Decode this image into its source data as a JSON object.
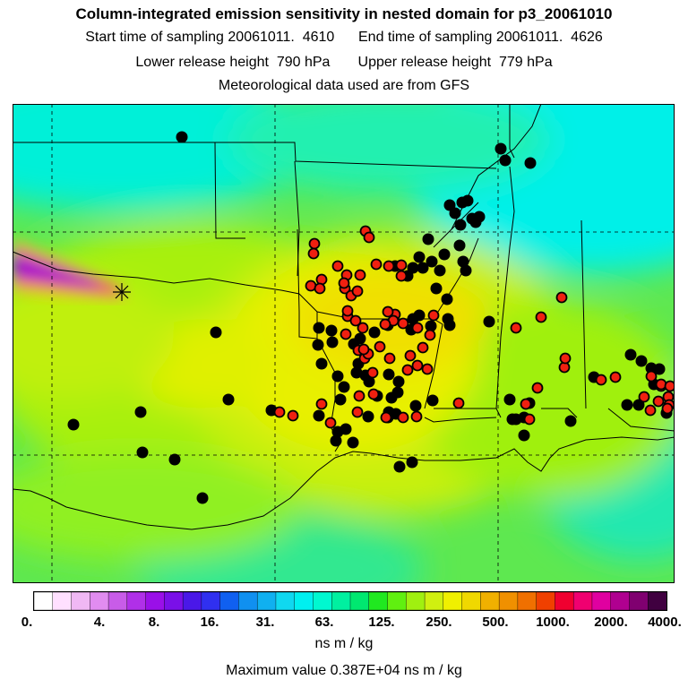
{
  "header": {
    "title": "Column-integrated emission sensitivity in nested domain for p3_20061010",
    "line1": "Start time of sampling 20061011.  4610      End time of sampling 20061011.  4626",
    "line2": "Lower release height  790 hPa       Upper release height  779 hPa",
    "line3": "Meteorological data used are from GFS"
  },
  "legend": {
    "tick_labels": [
      "0.",
      "4.",
      "8.",
      "16.",
      "31.",
      "63.",
      "125.",
      "250.",
      "500.",
      "1000.",
      "2000.",
      "4000."
    ],
    "unit": "ns m / kg",
    "max_text": "Maximum value  0.387E+04 ns m / kg",
    "colors": [
      "#ffffff",
      "#ffe0ff",
      "#f0b8f4",
      "#e18cf0",
      "#c85ce8",
      "#b030e8",
      "#9a10e8",
      "#7a10e8",
      "#4a18e8",
      "#3030f0",
      "#1060f0",
      "#1090f0",
      "#10b0f0",
      "#10d8f0",
      "#00f0f0",
      "#00f8d0",
      "#00f0a0",
      "#00e870",
      "#20e820",
      "#60f010",
      "#a0f010",
      "#d0f010",
      "#f0f000",
      "#f0d800",
      "#f0b000",
      "#f09000",
      "#f07000",
      "#f04000",
      "#f00030",
      "#f00070",
      "#e000a0",
      "#b00090",
      "#800070",
      "#400040"
    ]
  },
  "map": {
    "colors": {
      "far": "#00f0e0",
      "mid": "#30e880",
      "green": "#80f020",
      "yg": "#c8f010",
      "yel": "#f0f000",
      "orange": "#f0c000",
      "plume": "#9a10d0",
      "plume_edge": "#f03090",
      "black_dot": "#000000",
      "red_dot": "#f02010"
    },
    "release_marker": "asterisk",
    "dots_black_count": 78,
    "dots_red_count": 65
  }
}
